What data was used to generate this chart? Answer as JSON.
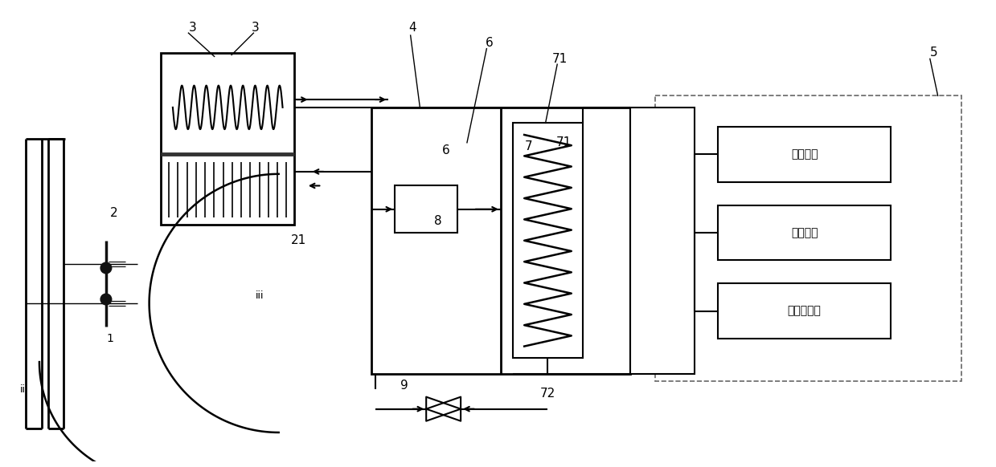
{
  "bg_color": "#ffffff",
  "line_color": "#000000",
  "figsize": [
    12.39,
    5.82
  ],
  "dpi": 100,
  "box_labels": [
    "建筑供热",
    "生活热水",
    "其他热用户"
  ]
}
